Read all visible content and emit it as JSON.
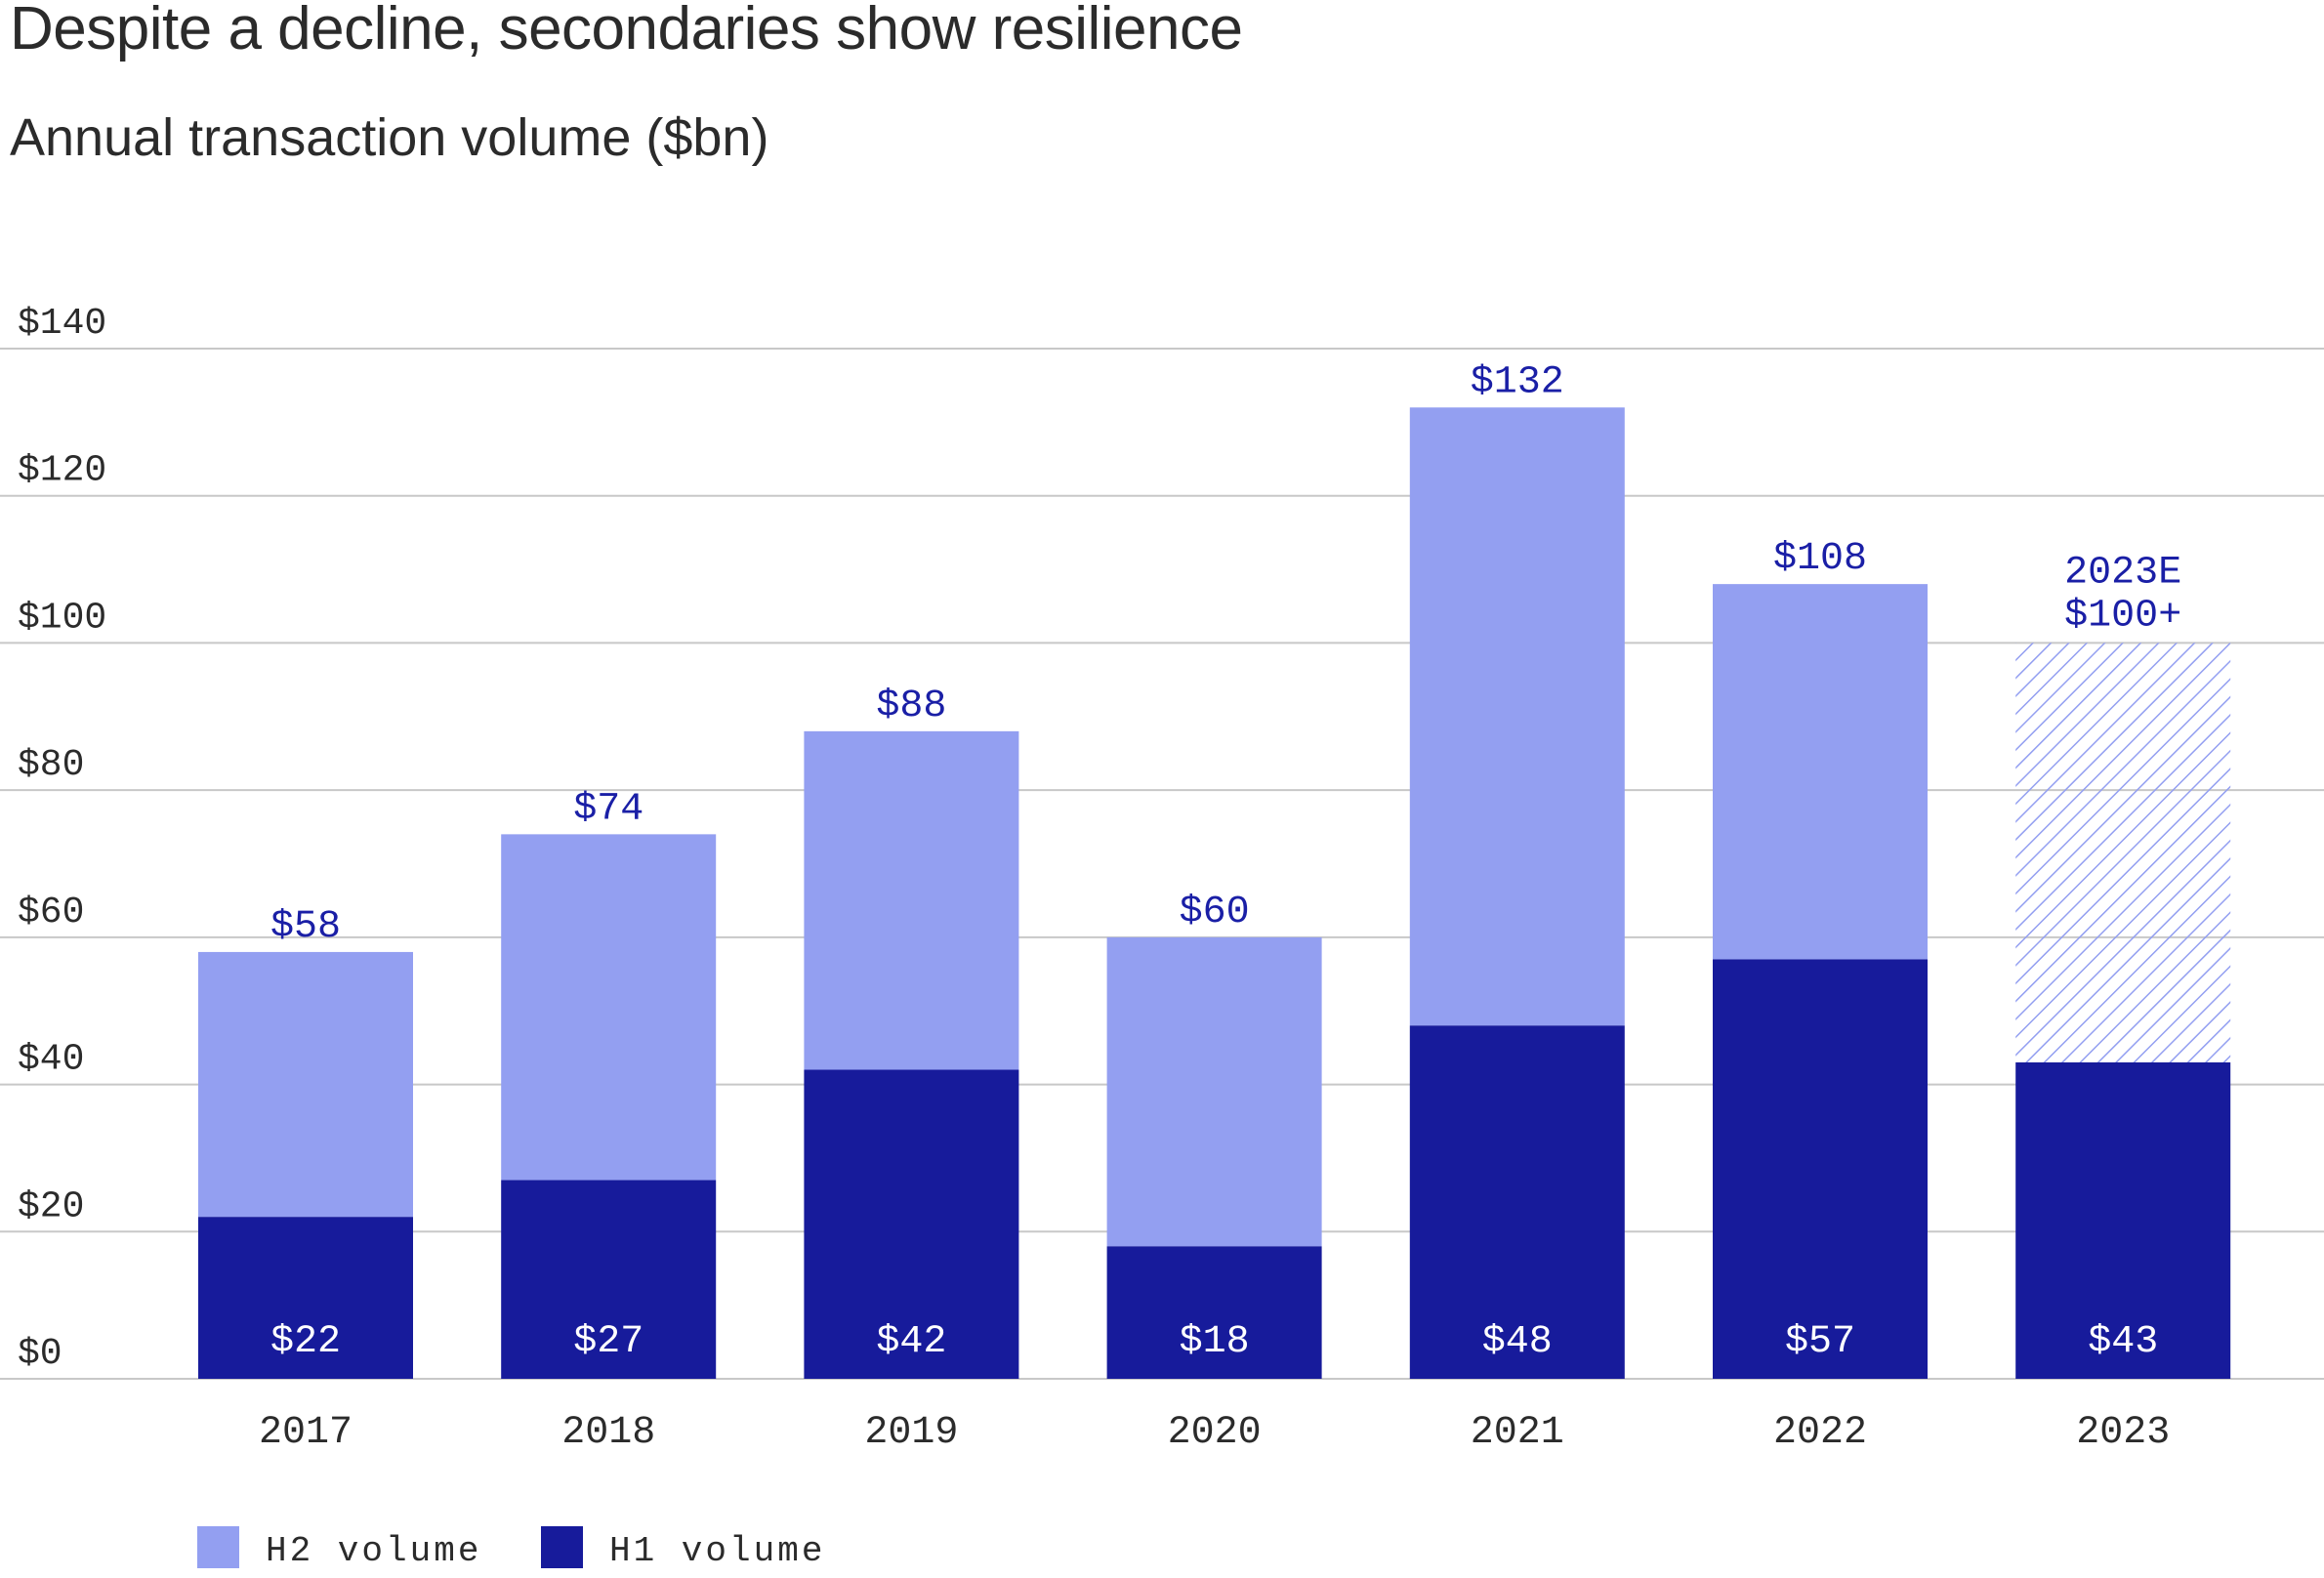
{
  "title": "Despite a decline, secondaries show resilience",
  "subtitle": "Annual transaction volume ($bn)",
  "colors": {
    "h1": "#171b9b",
    "h2": "#939ff1",
    "label": "#1a1fa6",
    "text": "#2b2b2b",
    "grid": "#c8c8c8"
  },
  "chart_data": {
    "type": "bar",
    "stacked": true,
    "title": "Despite a decline, secondaries show resilience",
    "subtitle": "Annual transaction volume ($bn)",
    "categories": [
      "2017",
      "2018",
      "2019",
      "2020",
      "2021",
      "2022",
      "2023"
    ],
    "series": [
      {
        "name": "H1 volume",
        "values": [
          22,
          27,
          42,
          18,
          48,
          57,
          43
        ],
        "labels": [
          "$22",
          "$27",
          "$42",
          "$18",
          "$48",
          "$57",
          "$43"
        ]
      },
      {
        "name": "H2 volume",
        "values": [
          36,
          47,
          46,
          42,
          84,
          51,
          57
        ],
        "estimated": [
          false,
          false,
          false,
          false,
          false,
          false,
          true
        ]
      }
    ],
    "totals": [
      58,
      74,
      88,
      60,
      132,
      108,
      100
    ],
    "total_labels": [
      "$58",
      "$74",
      "$88",
      "$60",
      "$132",
      "$108",
      "$100+"
    ],
    "estimate_label": "2023E",
    "ylim": [
      0,
      140
    ],
    "yticks": [
      0,
      20,
      40,
      60,
      80,
      100,
      120,
      140
    ],
    "ytick_labels": [
      "$0",
      "$20",
      "$40",
      "$60",
      "$80",
      "$100",
      "$120",
      "$140"
    ],
    "grid": true,
    "legend": {
      "placement": "bottom-left",
      "entries": [
        "H2 volume",
        "H1 volume"
      ]
    }
  }
}
